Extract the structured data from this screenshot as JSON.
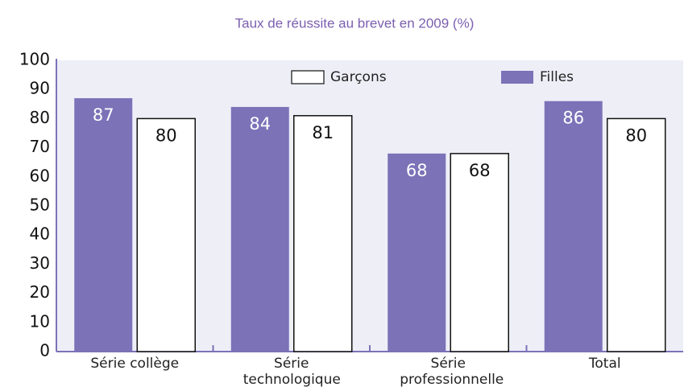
{
  "chart_data": {
    "type": "bar",
    "title": "Taux de réussite au brevet en 2009 (%)",
    "categories": [
      "Série collège",
      "Série technologique",
      "Série professionnelle",
      "Total"
    ],
    "series": [
      {
        "name": "Filles",
        "color": "#7b72b8",
        "values": [
          87,
          84,
          68,
          86
        ]
      },
      {
        "name": "Garçons",
        "color": "#ffffff",
        "values": [
          80,
          81,
          68,
          80
        ]
      }
    ],
    "ylim": [
      0,
      100
    ],
    "yticks": [
      0,
      10,
      20,
      30,
      40,
      50,
      60,
      70,
      80,
      90,
      100
    ],
    "grid": false
  }
}
